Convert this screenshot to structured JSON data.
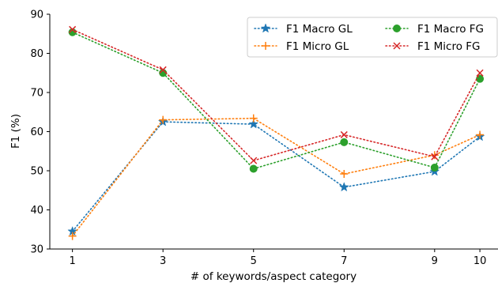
{
  "chart_data": {
    "type": "line",
    "title": "",
    "xlabel": "# of keywords/aspect category",
    "ylabel": "F1 (%)",
    "x": [
      "1",
      "3",
      "5",
      "7",
      "9",
      "10"
    ],
    "ylim": [
      30,
      90
    ],
    "yticks": [
      30,
      40,
      50,
      60,
      70,
      80,
      90
    ],
    "grid": false,
    "legend_position": "top-right",
    "legend_columns": 2,
    "series": [
      {
        "name": "F1 Macro GL",
        "color": "#1f77b4",
        "marker": "star",
        "linestyle": "dotted",
        "values": [
          34.5,
          62.5,
          61.9,
          45.8,
          49.8,
          58.7
        ]
      },
      {
        "name": "F1 Micro GL",
        "color": "#ff7f0e",
        "marker": "plus",
        "linestyle": "dotted",
        "values": [
          33.3,
          63.0,
          63.4,
          49.2,
          54.0,
          59.2
        ]
      },
      {
        "name": "F1 Macro FG",
        "color": "#2ca02c",
        "marker": "circle",
        "linestyle": "dotted",
        "values": [
          85.4,
          75.0,
          50.5,
          57.3,
          50.8,
          73.5
        ]
      },
      {
        "name": "F1 Micro FG",
        "color": "#d62728",
        "marker": "x",
        "linestyle": "dotted",
        "values": [
          86.1,
          75.8,
          52.6,
          59.2,
          53.6,
          75.0
        ]
      }
    ]
  }
}
